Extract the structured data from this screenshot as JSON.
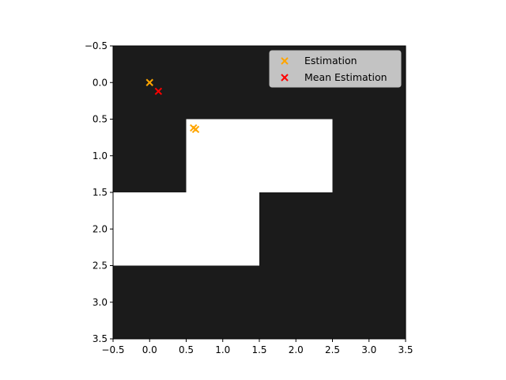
{
  "chart_data": {
    "type": "heatmap",
    "title": "",
    "xlabel": "",
    "ylabel": "",
    "xlim": [
      -0.5,
      3.5
    ],
    "ylim": [
      3.5,
      -0.5
    ],
    "x_ticks": [
      -0.5,
      0.0,
      0.5,
      1.0,
      1.5,
      2.0,
      2.5,
      3.0,
      3.5
    ],
    "y_ticks": [
      -0.5,
      0.0,
      0.5,
      1.0,
      1.5,
      2.0,
      2.5,
      3.0,
      3.5
    ],
    "x_tick_labels": [
      "−0.5",
      "0.0",
      "0.5",
      "1.0",
      "1.5",
      "2.0",
      "2.5",
      "3.0",
      "3.5"
    ],
    "y_tick_labels": [
      "−0.5",
      "0.0",
      "0.5",
      "1.0",
      "1.5",
      "2.0",
      "2.5",
      "3.0",
      "3.5"
    ],
    "grid": false,
    "cmap": {
      "0": "#1b1b1b",
      "1": "#ffffff"
    },
    "matrix": [
      [
        0,
        0,
        0,
        0
      ],
      [
        0,
        1,
        1,
        0
      ],
      [
        1,
        1,
        0,
        0
      ],
      [
        0,
        0,
        0,
        0
      ]
    ],
    "series": [
      {
        "name": "Estimation",
        "marker": "x",
        "color": "#ffa500",
        "points": [
          {
            "x": 0.0,
            "y": 0.0
          },
          {
            "x": 0.6,
            "y": 0.62
          },
          {
            "x": 0.63,
            "y": 0.64
          }
        ]
      },
      {
        "name": "Mean Estimation",
        "marker": "x",
        "color": "#ff0000",
        "points": [
          {
            "x": 0.12,
            "y": 0.12
          }
        ]
      }
    ],
    "legend": {
      "location": "upper right"
    }
  }
}
